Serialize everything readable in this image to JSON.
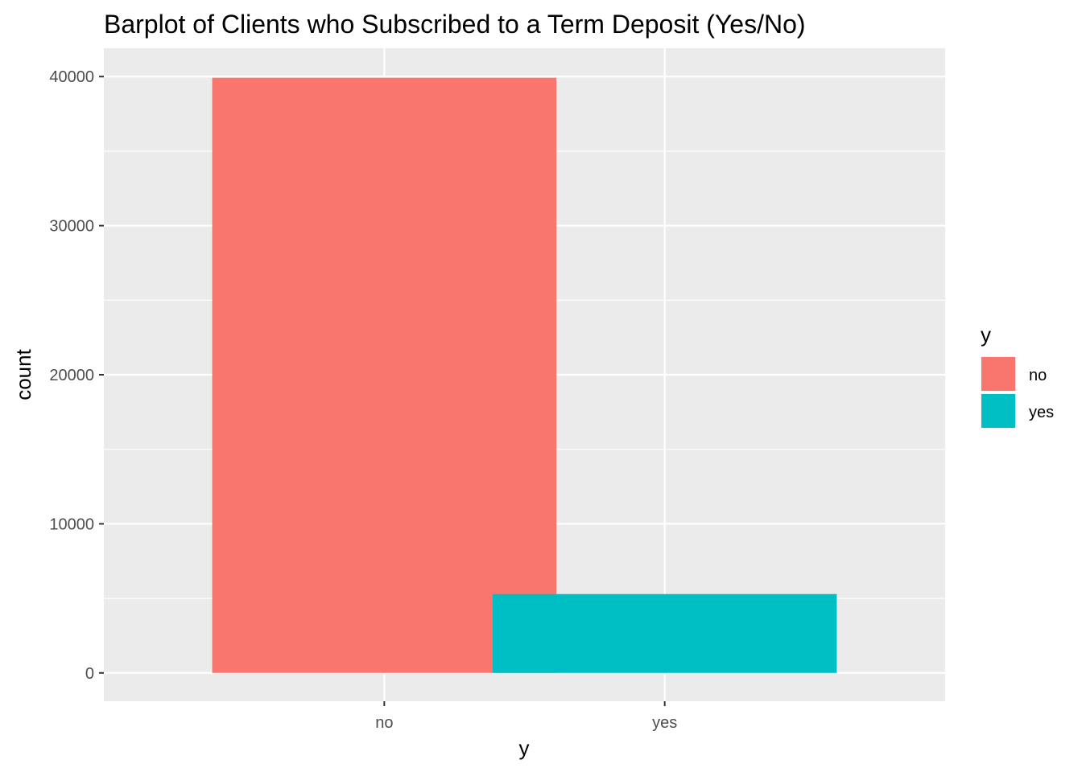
{
  "chart_data": {
    "type": "bar",
    "title": "Barplot of Clients who Subscribed to a Term Deposit (Yes/No)",
    "xlabel": "y",
    "ylabel": "count",
    "categories": [
      "no",
      "yes"
    ],
    "values": [
      39922,
      5289
    ],
    "colors": [
      "#F8766D",
      "#00BFC4"
    ],
    "ylim": [
      -1900,
      41900
    ],
    "yticks": [
      0,
      10000,
      20000,
      30000,
      40000
    ],
    "ytick_labels": [
      "0",
      "10000",
      "20000",
      "30000",
      "40000"
    ],
    "grid": true,
    "panel_background": "#EBEBEB",
    "legend": {
      "title": "y",
      "placement": "right",
      "entries": [
        {
          "label": "no",
          "color": "#F8766D"
        },
        {
          "label": "yes",
          "color": "#00BFC4"
        }
      ]
    }
  }
}
